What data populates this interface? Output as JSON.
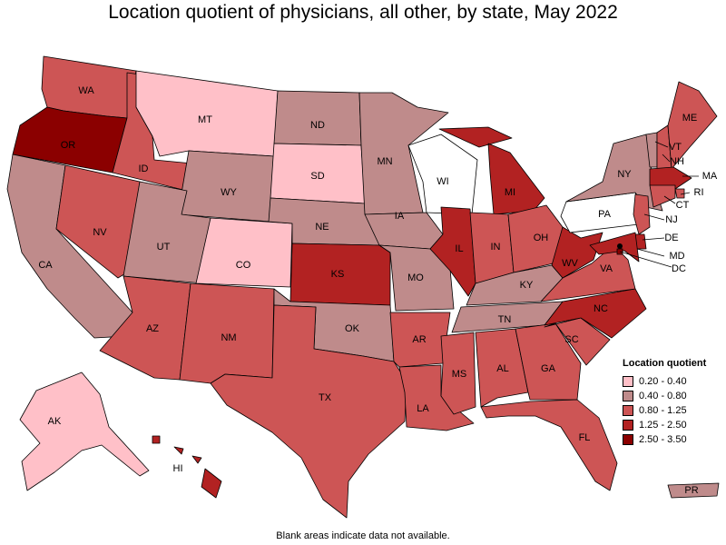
{
  "title": "Location quotient of physicians, all other, by state, May 2022",
  "footnote": "Blank areas indicate data not available.",
  "legend": {
    "title": "Location quotient",
    "items": [
      {
        "label": "0.20 - 0.40",
        "color": "#ffc0c8"
      },
      {
        "label": "0.40 - 0.80",
        "color": "#bf8b8b"
      },
      {
        "label": "0.80 - 1.25",
        "color": "#cd5555"
      },
      {
        "label": "1.25 - 2.50",
        "color": "#b22222"
      },
      {
        "label": "2.50 - 3.50",
        "color": "#8b0000"
      }
    ]
  },
  "states": [
    {
      "abbr": "WA",
      "cls": 2
    },
    {
      "abbr": "OR",
      "cls": 4
    },
    {
      "abbr": "CA",
      "cls": 1
    },
    {
      "abbr": "ID",
      "cls": 2
    },
    {
      "abbr": "NV",
      "cls": 2
    },
    {
      "abbr": "MT",
      "cls": 0
    },
    {
      "abbr": "WY",
      "cls": 1
    },
    {
      "abbr": "UT",
      "cls": 1
    },
    {
      "abbr": "CO",
      "cls": 0
    },
    {
      "abbr": "AZ",
      "cls": 2
    },
    {
      "abbr": "NM",
      "cls": 2
    },
    {
      "abbr": "ND",
      "cls": 1
    },
    {
      "abbr": "SD",
      "cls": 0
    },
    {
      "abbr": "NE",
      "cls": 1
    },
    {
      "abbr": "KS",
      "cls": 3
    },
    {
      "abbr": "OK",
      "cls": 1
    },
    {
      "abbr": "TX",
      "cls": 2
    },
    {
      "abbr": "MN",
      "cls": 1
    },
    {
      "abbr": "IA",
      "cls": 1
    },
    {
      "abbr": "MO",
      "cls": 1
    },
    {
      "abbr": "AR",
      "cls": 2
    },
    {
      "abbr": "LA",
      "cls": 2
    },
    {
      "abbr": "WI",
      "cls": -1
    },
    {
      "abbr": "IL",
      "cls": 3
    },
    {
      "abbr": "MI",
      "cls": 3
    },
    {
      "abbr": "IN",
      "cls": 2
    },
    {
      "abbr": "OH",
      "cls": 2
    },
    {
      "abbr": "KY",
      "cls": 1
    },
    {
      "abbr": "TN",
      "cls": 1
    },
    {
      "abbr": "MS",
      "cls": 2
    },
    {
      "abbr": "AL",
      "cls": 2
    },
    {
      "abbr": "GA",
      "cls": 2
    },
    {
      "abbr": "FL",
      "cls": 2
    },
    {
      "abbr": "SC",
      "cls": 2
    },
    {
      "abbr": "NC",
      "cls": 3
    },
    {
      "abbr": "VA",
      "cls": 2
    },
    {
      "abbr": "WV",
      "cls": 3
    },
    {
      "abbr": "PA",
      "cls": -1
    },
    {
      "abbr": "NY",
      "cls": 1
    },
    {
      "abbr": "VT",
      "cls": 1
    },
    {
      "abbr": "NH",
      "cls": 2
    },
    {
      "abbr": "ME",
      "cls": 2
    },
    {
      "abbr": "MA",
      "cls": 3
    },
    {
      "abbr": "RI",
      "cls": 2
    },
    {
      "abbr": "CT",
      "cls": 2
    },
    {
      "abbr": "NJ",
      "cls": 2
    },
    {
      "abbr": "DE",
      "cls": 3
    },
    {
      "abbr": "MD",
      "cls": 3
    },
    {
      "abbr": "DC",
      "cls": 4
    },
    {
      "abbr": "AK",
      "cls": 0
    },
    {
      "abbr": "HI",
      "cls": 3
    },
    {
      "abbr": "PR",
      "cls": 1
    }
  ],
  "no_data_color": "#ffffff"
}
